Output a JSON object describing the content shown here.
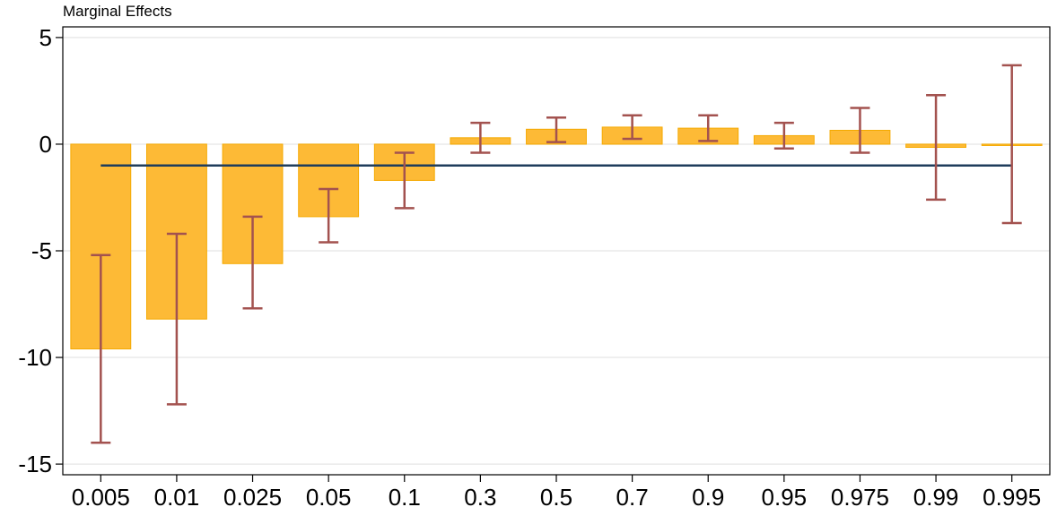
{
  "chart_data": {
    "type": "bar",
    "title": "Marginal Effects",
    "xlabel": "",
    "ylabel": "",
    "categories": [
      "0.005",
      "0.01",
      "0.025",
      "0.05",
      "0.1",
      "0.3",
      "0.5",
      "0.7",
      "0.9",
      "0.95",
      "0.975",
      "0.99",
      "0.995"
    ],
    "values": [
      -9.6,
      -8.2,
      -5.6,
      -3.4,
      -1.7,
      0.3,
      0.7,
      0.8,
      0.75,
      0.4,
      0.65,
      -0.15,
      0.0
    ],
    "ci_lower": [
      -14.0,
      -12.2,
      -7.7,
      -4.6,
      -3.0,
      -0.4,
      0.1,
      0.25,
      0.15,
      -0.2,
      -0.4,
      -2.6,
      -3.7
    ],
    "ci_upper": [
      -5.2,
      -4.2,
      -3.4,
      -2.1,
      -0.4,
      1.0,
      1.25,
      1.35,
      1.35,
      1.0,
      1.7,
      2.3,
      3.7
    ],
    "reference_line": -1.0,
    "ylim": [
      -15.5,
      5.5
    ],
    "yticks": [
      5,
      0,
      -5,
      -10,
      -15
    ],
    "ytick_labels": [
      "5",
      "0",
      "-5",
      "-10",
      "-15"
    ],
    "grid": true,
    "colors": {
      "bar_fill": "#FDBA36",
      "bar_stroke": "#F5A900",
      "error_bar": "#A3524F",
      "reference_line": "#1F3D5C",
      "grid": "#EAEAEA"
    }
  }
}
